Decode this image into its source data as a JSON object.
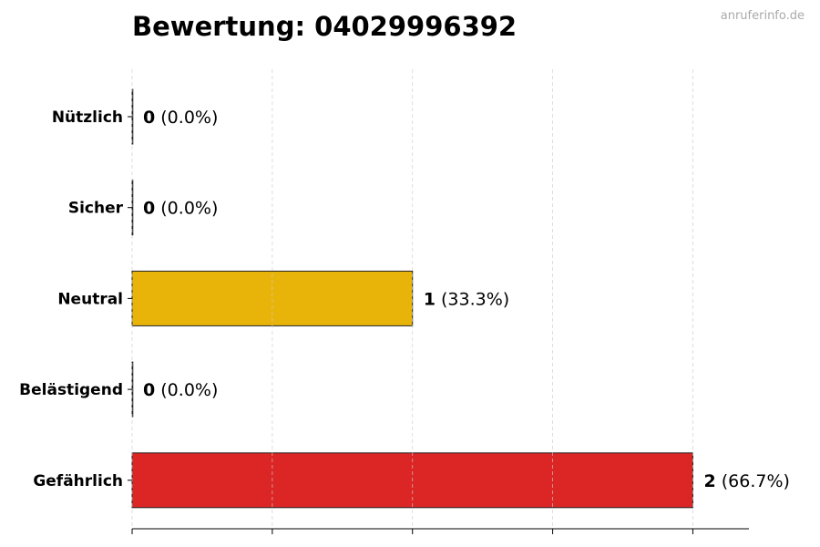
{
  "title": "Bewertung: 04029996392",
  "watermark": "anruferinfo.de",
  "chart_data": {
    "type": "bar",
    "orientation": "horizontal",
    "title": "Bewertung: 04029996392",
    "categories": [
      "Nützlich",
      "Sicher",
      "Neutral",
      "Belästigend",
      "Gefährlich"
    ],
    "values": [
      0,
      0,
      1,
      0,
      2
    ],
    "labels_count": [
      "0",
      "0",
      "1",
      "0",
      "2"
    ],
    "labels_pct": [
      "(0.0%)",
      "(0.0%)",
      "(33.3%)",
      "(0.0%)",
      "(66.7%)"
    ],
    "colors": [
      "#2ca02c",
      "#1f77b4",
      "#e8b40a",
      "#f08c00",
      "#dc2626"
    ],
    "xlim": [
      0,
      2.2
    ],
    "xticks": [
      0,
      0.5,
      1,
      1.5,
      2
    ],
    "grid": "x dashed",
    "xlabel": "",
    "ylabel": ""
  }
}
